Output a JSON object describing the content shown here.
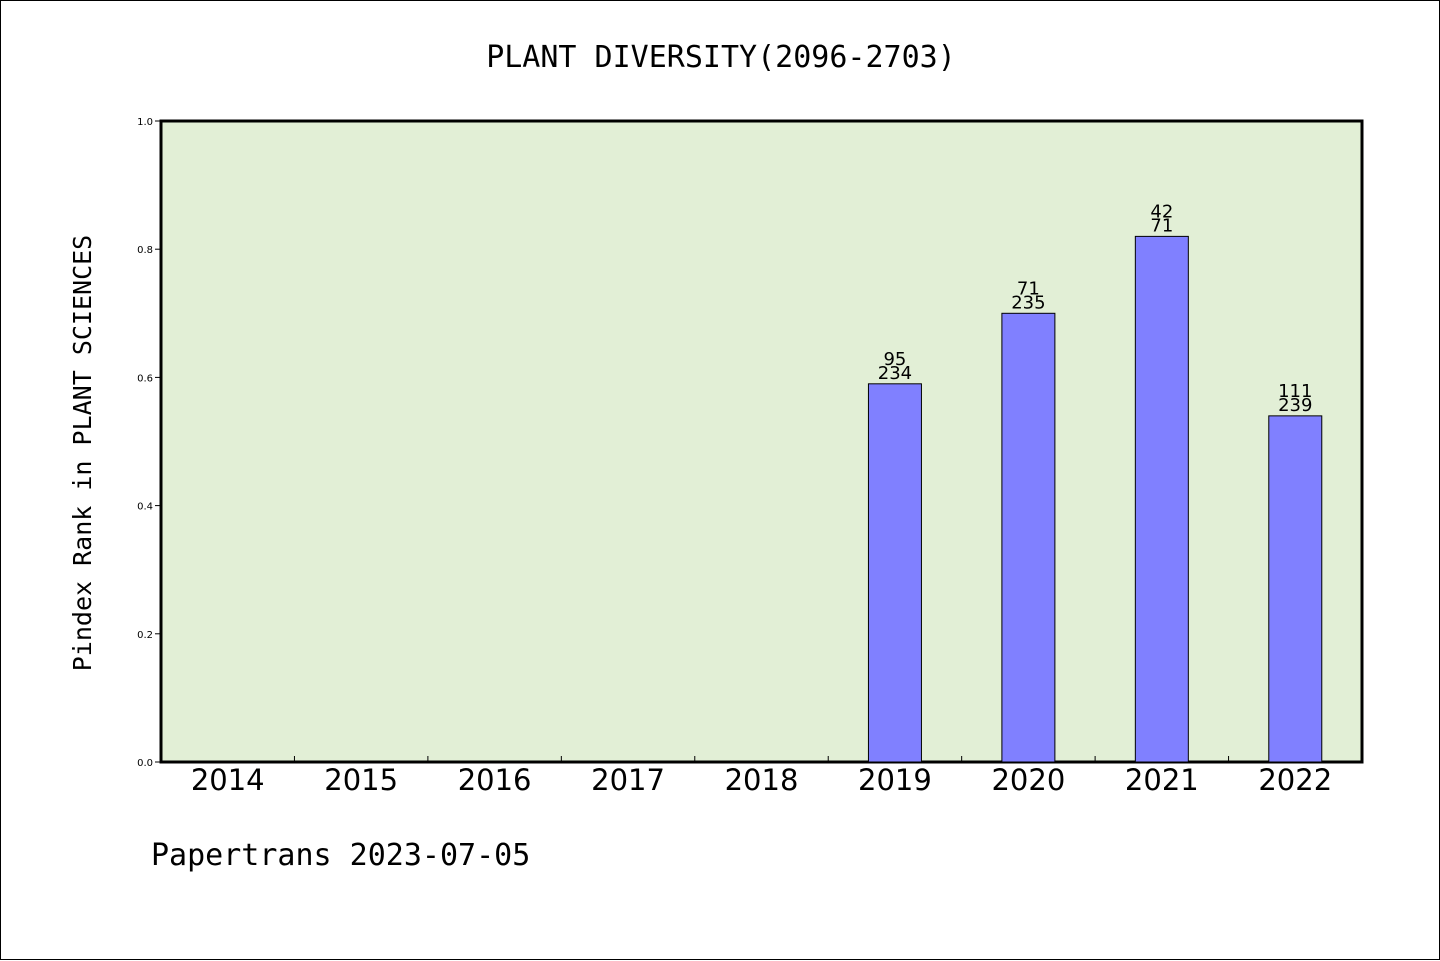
{
  "footer": "Papertrans 2023-07-05",
  "colors": {
    "plot_bg": "#e2efd6",
    "bar": "#8080ff",
    "axis": "#000000"
  },
  "chart_data": {
    "type": "bar",
    "title": "PLANT DIVERSITY(2096-2703)",
    "xlabel": "",
    "ylabel": "Pindex Rank in PLANT SCIENCES",
    "ylim": [
      0,
      1.0
    ],
    "yticks": [
      "0.0",
      "0.2",
      "0.4",
      "0.6",
      "0.8",
      "1.0"
    ],
    "grid": false,
    "categories": [
      "2014",
      "2015",
      "2016",
      "2017",
      "2018",
      "2019",
      "2020",
      "2021",
      "2022"
    ],
    "values": [
      null,
      null,
      null,
      null,
      null,
      0.59,
      0.7,
      0.82,
      0.54
    ],
    "label_top": [
      null,
      null,
      null,
      null,
      null,
      "95",
      "71",
      "42",
      "111"
    ],
    "label_bottom": [
      null,
      null,
      null,
      null,
      null,
      "234",
      "235",
      "71",
      "239"
    ]
  }
}
